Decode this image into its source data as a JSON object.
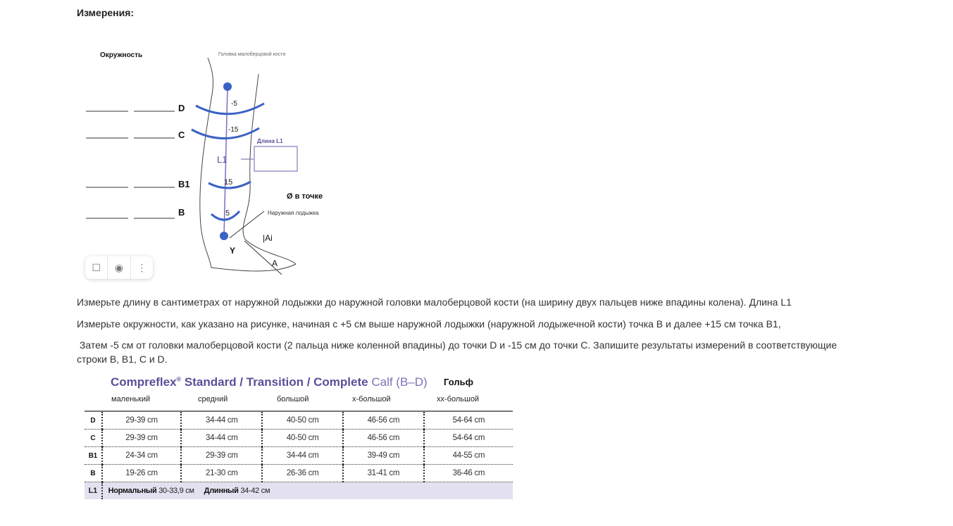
{
  "heading": "Измерения:",
  "figure": {
    "circumference_label": "Окружность",
    "fibula_label": "Головка малоберцовой кости",
    "points": [
      "D",
      "C",
      "B1",
      "B"
    ],
    "offsets": [
      "-5",
      "-15",
      "15",
      "5"
    ],
    "l1": "L1",
    "length_label": "Длина L1",
    "diameter_label": "Ø в точке",
    "ankle_label": "Наружная лодыжка",
    "ai": "|Ai",
    "y": "Y",
    "a": "A",
    "accent": "#3a62c4"
  },
  "toolbar": {
    "icons": [
      "bookmark-icon",
      "camera-search-icon",
      "more-vertical-icon"
    ]
  },
  "paragraphs": [
    "Измерьте длину в сантиметрах от наружной лодыжки до наружной головки малоберцовой кости (на ширину двух пальцев ниже впадины колена). Длина L1",
    "Измерьте окружности, как указано на рисунке, начиная с +5 см выше наружной лодыжки (наружной лодыжечной кости) точка B и далее +15 см точка B1,",
    " Затем -5 см от головки малоберцовой кости (2 пальца ниже коленной впадины) до точки D и -15 см до точки C. Запишите результаты измерений в соответствующие",
    "строки B, B1, C и D."
  ],
  "size_table": {
    "brand": "Compreflex",
    "reg": "®",
    "title_rest": " Standard / Transition / Complete",
    "calf": " Calf (B–D)",
    "golf": "Гольф",
    "columns": [
      "маленький",
      "средний",
      "большой",
      "x-большой",
      "xx-большой"
    ],
    "rows": [
      {
        "label": "D",
        "values": [
          "29-39 cm",
          "34-44 cm",
          "40-50 cm",
          "46-56 cm",
          "54-64 cm"
        ]
      },
      {
        "label": "C",
        "values": [
          "29-39 cm",
          "34-44 cm",
          "40-50 cm",
          "46-56 cm",
          "54-64 cm"
        ]
      },
      {
        "label": "B1",
        "values": [
          "24-34 cm",
          "29-39 cm",
          "34-44 cm",
          "39-49 cm",
          "44-55 cm"
        ]
      },
      {
        "label": "B",
        "values": [
          "19-26 cm",
          "21-30 cm",
          "26-36 cm",
          "31-41 cm",
          "36-46 cm"
        ]
      }
    ],
    "l1": {
      "label": "L1",
      "normal_label": "Нормальный",
      "normal_value": " 30-33,9 см",
      "long_label": "Длинный",
      "long_value": " 34-42 см"
    }
  }
}
